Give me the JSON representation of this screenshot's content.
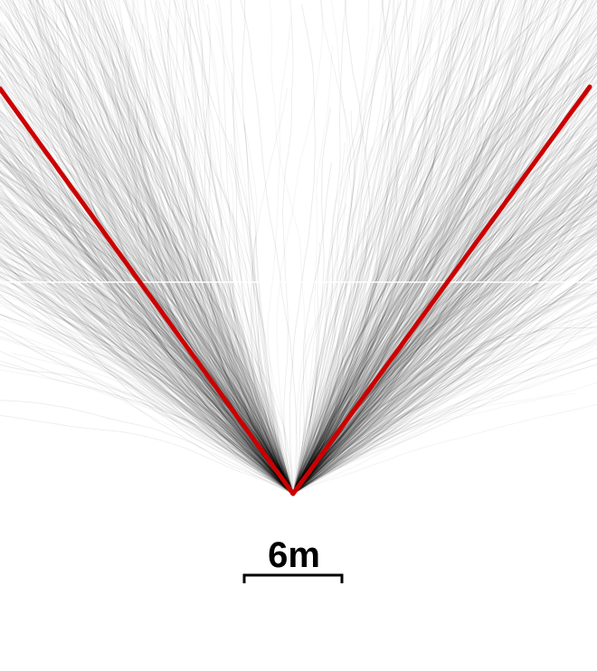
{
  "scale_bar": {
    "label": "6m"
  },
  "colors": {
    "background": "#ffffff",
    "trajectory": "#000000",
    "mean_line": "#cc0000",
    "scale_bar": "#000000"
  }
}
